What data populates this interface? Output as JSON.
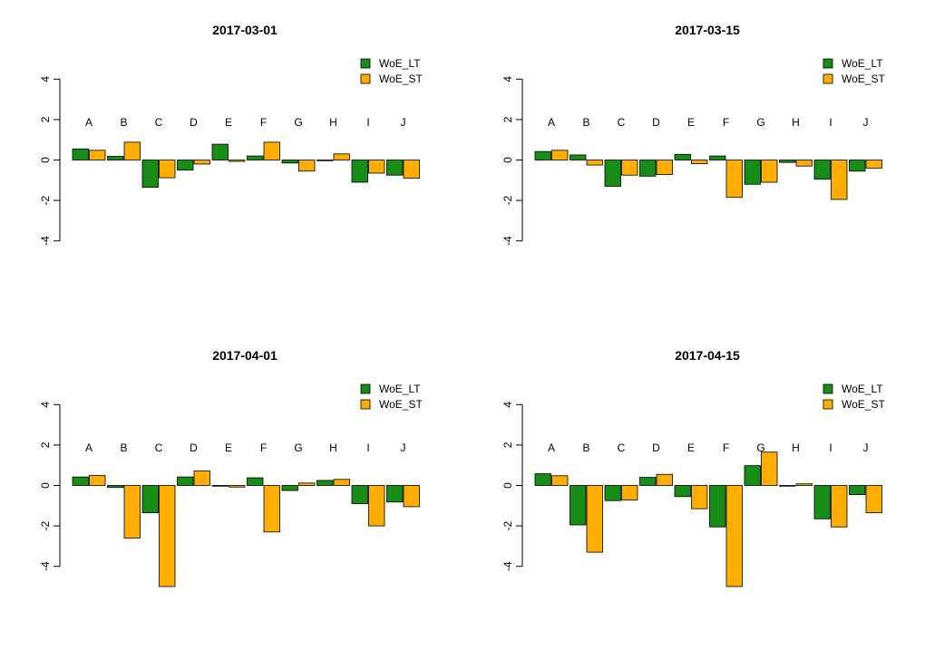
{
  "colors": {
    "WoE_LT": "#178c17",
    "WoE_ST": "#ffae00",
    "border": "#000000"
  },
  "chart_data": [
    {
      "type": "bar",
      "title": "2017-03-01",
      "categories": [
        "A",
        "B",
        "C",
        "D",
        "E",
        "F",
        "G",
        "H",
        "I",
        "J"
      ],
      "series": [
        {
          "name": "WoE_LT",
          "values": [
            0.55,
            0.18,
            -1.35,
            -0.5,
            0.78,
            0.2,
            -0.15,
            0.0,
            -1.1,
            -0.75
          ]
        },
        {
          "name": "WoE_ST",
          "values": [
            0.48,
            0.88,
            -0.88,
            -0.2,
            -0.07,
            0.88,
            -0.55,
            0.3,
            -0.65,
            -0.9
          ]
        }
      ],
      "ylim": [
        -4,
        4
      ],
      "yticks": [
        -4,
        -2,
        0,
        2,
        4
      ],
      "legend_position": "top-right"
    },
    {
      "type": "bar",
      "title": "2017-03-15",
      "categories": [
        "A",
        "B",
        "C",
        "D",
        "E",
        "F",
        "G",
        "H",
        "I",
        "J"
      ],
      "series": [
        {
          "name": "WoE_LT",
          "values": [
            0.42,
            0.25,
            -1.3,
            -0.8,
            0.28,
            0.2,
            -1.2,
            -0.12,
            -0.95,
            -0.55
          ]
        },
        {
          "name": "WoE_ST",
          "values": [
            0.48,
            -0.25,
            -0.75,
            -0.72,
            -0.18,
            -1.85,
            -1.1,
            -0.3,
            -1.95,
            -0.4
          ]
        }
      ],
      "ylim": [
        -4,
        4
      ],
      "yticks": [
        -4,
        -2,
        0,
        2,
        4
      ],
      "legend_position": "top-right"
    },
    {
      "type": "bar",
      "title": "2017-04-01",
      "categories": [
        "A",
        "B",
        "C",
        "D",
        "E",
        "F",
        "G",
        "H",
        "I",
        "J"
      ],
      "series": [
        {
          "name": "WoE_LT",
          "values": [
            0.42,
            -0.1,
            -1.35,
            0.42,
            0.0,
            0.38,
            -0.25,
            0.25,
            -0.9,
            -0.82
          ]
        },
        {
          "name": "WoE_ST",
          "values": [
            0.5,
            -2.6,
            -5.0,
            0.72,
            -0.08,
            -2.3,
            0.12,
            0.3,
            -2.0,
            -1.05
          ]
        }
      ],
      "ylim": [
        -4,
        4
      ],
      "yticks": [
        -4,
        -2,
        0,
        2,
        4
      ],
      "legend_position": "top-right"
    },
    {
      "type": "bar",
      "title": "2017-04-15",
      "categories": [
        "A",
        "B",
        "C",
        "D",
        "E",
        "F",
        "G",
        "H",
        "I",
        "J"
      ],
      "series": [
        {
          "name": "WoE_LT",
          "values": [
            0.58,
            -1.95,
            -0.75,
            0.4,
            -0.55,
            -2.05,
            0.98,
            0.0,
            -1.65,
            -0.45
          ]
        },
        {
          "name": "WoE_ST",
          "values": [
            0.48,
            -3.3,
            -0.72,
            0.55,
            -1.15,
            -5.0,
            1.65,
            0.08,
            -2.05,
            -1.35
          ]
        }
      ],
      "ylim": [
        -4,
        4
      ],
      "yticks": [
        -4,
        -2,
        0,
        2,
        4
      ],
      "legend_position": "top-right"
    }
  ]
}
